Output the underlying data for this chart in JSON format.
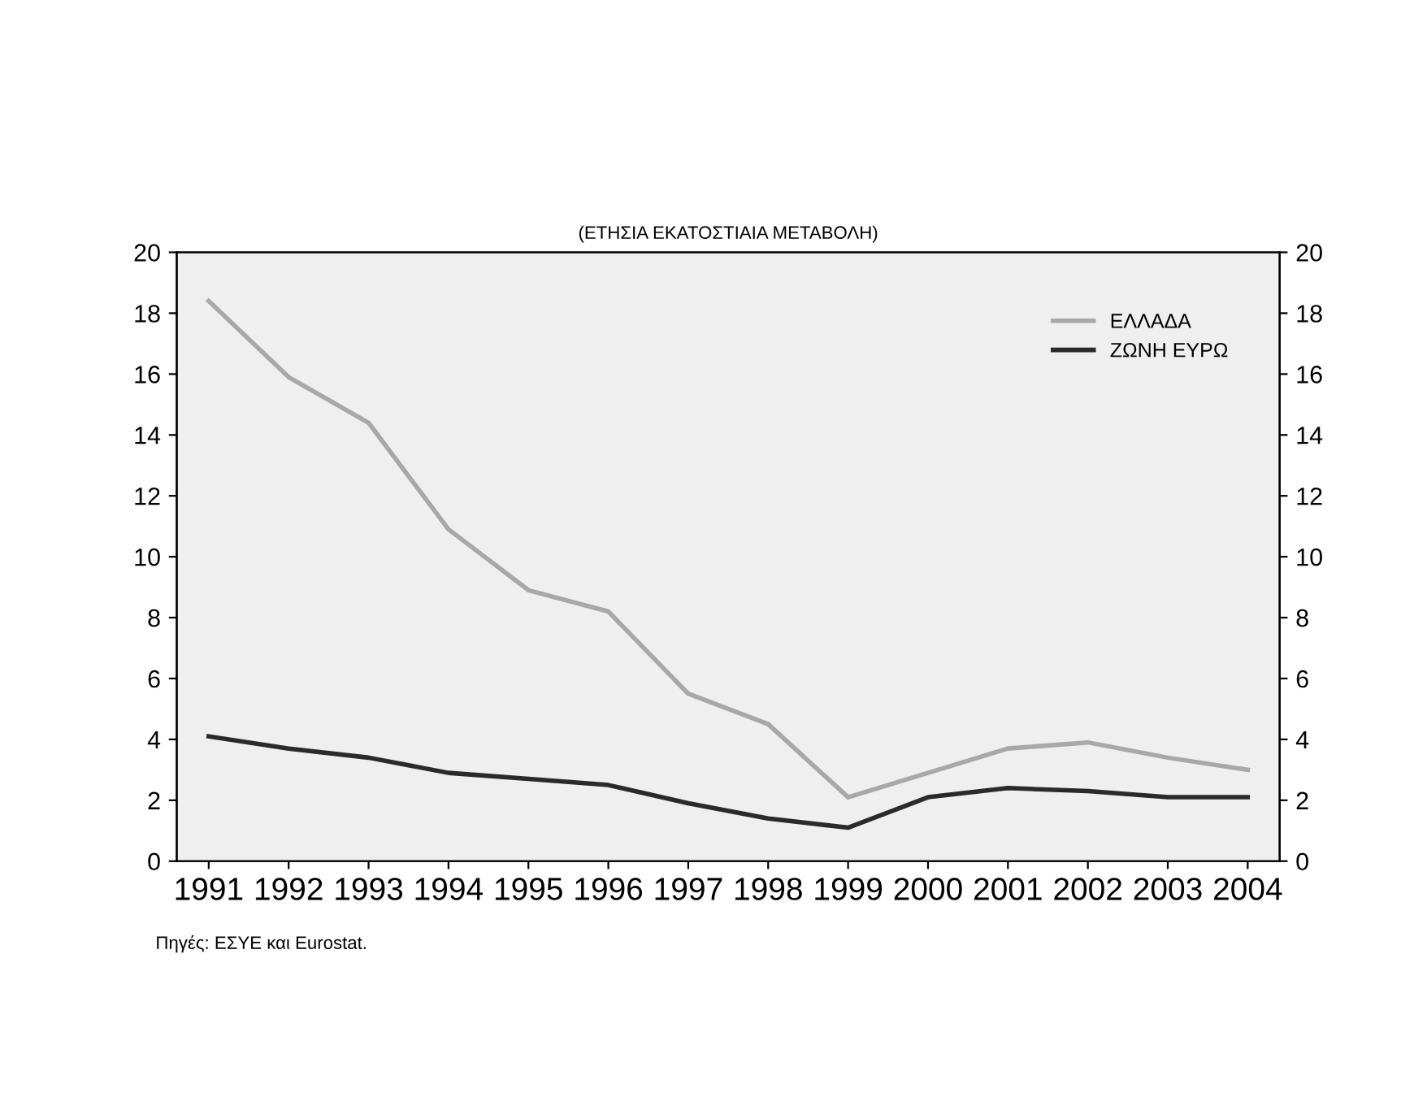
{
  "chart_data": {
    "type": "line",
    "title": "(ΕΤΗΣΙΑ ΕΚΑΤΟΣΤΙΑΙΑ ΜΕΤΑΒΟΛΗ)",
    "categories": [
      "1991",
      "1992",
      "1993",
      "1994",
      "1995",
      "1996",
      "1997",
      "1998",
      "1999",
      "2000",
      "2001",
      "2002",
      "2003",
      "2004"
    ],
    "series": [
      {
        "name": "ΕΛΛΑΔΑ",
        "color": "#a8a8a8",
        "values": [
          18.4,
          15.9,
          14.4,
          10.9,
          8.9,
          8.2,
          5.5,
          4.5,
          2.1,
          2.9,
          3.7,
          3.9,
          3.4,
          3.0
        ]
      },
      {
        "name": "ΖΩΝΗ ΕΥΡΩ",
        "color": "#2a2a2a",
        "values": [
          4.1,
          3.7,
          3.4,
          2.9,
          2.7,
          2.5,
          1.9,
          1.4,
          1.1,
          2.1,
          2.4,
          2.3,
          2.1,
          2.1
        ]
      }
    ],
    "ylim": [
      0,
      20
    ],
    "yticks": [
      0,
      2,
      4,
      6,
      8,
      10,
      12,
      14,
      16,
      18,
      20
    ],
    "y2lim": [
      0,
      20
    ],
    "y2ticks": [
      0,
      2,
      4,
      6,
      8,
      10,
      12,
      14,
      16,
      18,
      20
    ],
    "legend": "top right",
    "grid": false,
    "annotations": [
      "Πηγές: ΕΣΥΕ και Eurostat."
    ]
  }
}
